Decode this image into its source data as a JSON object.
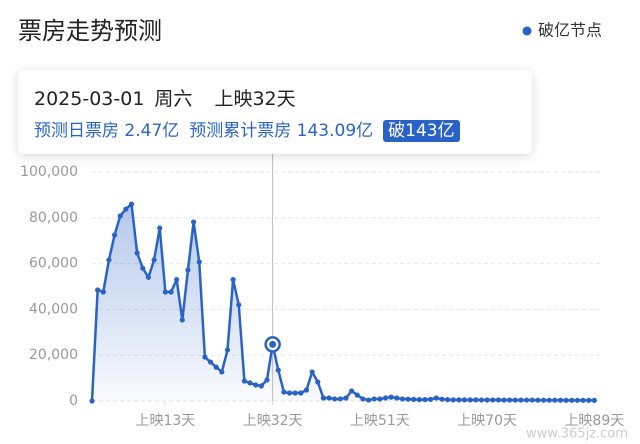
{
  "chart_data": {
    "type": "line",
    "title": "票房走势预测",
    "legend_label": "破亿节点",
    "color": "#2a63c8",
    "grid": true,
    "x": [
      0,
      1,
      2,
      3,
      4,
      5,
      6,
      7,
      8,
      9,
      10,
      11,
      12,
      13,
      14,
      15,
      16,
      17,
      18,
      19,
      20,
      21,
      22,
      23,
      24,
      25,
      26,
      27,
      28,
      29,
      30,
      31,
      32,
      33,
      34,
      35,
      36,
      37,
      38,
      39,
      40,
      41,
      42,
      43,
      44,
      45,
      46,
      47,
      48,
      49,
      50,
      51,
      52,
      53,
      54,
      55,
      56,
      57,
      58,
      59,
      60,
      61,
      62,
      63,
      64,
      65,
      66,
      67,
      68,
      69,
      70,
      71,
      72,
      73,
      74,
      75,
      76,
      77,
      78,
      79,
      80,
      81,
      82,
      83,
      84,
      85,
      86,
      87,
      88,
      89
    ],
    "values": [
      0,
      48500,
      47600,
      61600,
      72500,
      80800,
      83800,
      86000,
      64600,
      58000,
      54000,
      61600,
      75500,
      47600,
      47600,
      53000,
      35400,
      57200,
      78200,
      60700,
      19200,
      17000,
      14800,
      12700,
      22300,
      53000,
      42000,
      8700,
      7900,
      7000,
      6600,
      9200,
      24700,
      13500,
      3900,
      3500,
      3500,
      3500,
      4800,
      12700,
      8300,
      1300,
      1300,
      900,
      900,
      1300,
      4400,
      2600,
      900,
      400,
      900,
      900,
      1300,
      1700,
      1300,
      900,
      800,
      700,
      600,
      600,
      700,
      1300,
      800,
      600,
      500,
      500,
      500,
      500,
      500,
      450,
      450,
      450,
      450,
      400,
      400,
      400,
      400,
      400,
      400,
      350,
      350,
      350,
      350,
      350,
      300,
      300,
      300,
      300,
      300,
      300
    ],
    "xlim": [
      0,
      90
    ],
    "xticks": [
      {
        "value": 13,
        "label": "上映13天"
      },
      {
        "value": 32,
        "label": "上映32天"
      },
      {
        "value": 51,
        "label": "上映51天"
      },
      {
        "value": 70,
        "label": "上映70天"
      },
      {
        "value": 89,
        "label": "上映89天"
      }
    ],
    "ylim": [
      0,
      100000
    ],
    "yticks": [
      0,
      {
        "value": 20000,
        "label": "20,000"
      },
      {
        "value": 40000,
        "label": "40,000"
      },
      {
        "value": 60000,
        "label": "60,000"
      },
      {
        "value": 80000,
        "label": "80,000"
      },
      {
        "value": 100000,
        "label": "100,000"
      }
    ],
    "cursor": {
      "x": 32
    },
    "tooltip": {
      "date": "2025-03-01",
      "weekday": "周六",
      "day": "上映32天",
      "daily": "预测日票房 2.47亿",
      "total": "预测累计票房 143.09亿",
      "badge": "破143亿"
    }
  },
  "watermark": "www.365jz.com"
}
